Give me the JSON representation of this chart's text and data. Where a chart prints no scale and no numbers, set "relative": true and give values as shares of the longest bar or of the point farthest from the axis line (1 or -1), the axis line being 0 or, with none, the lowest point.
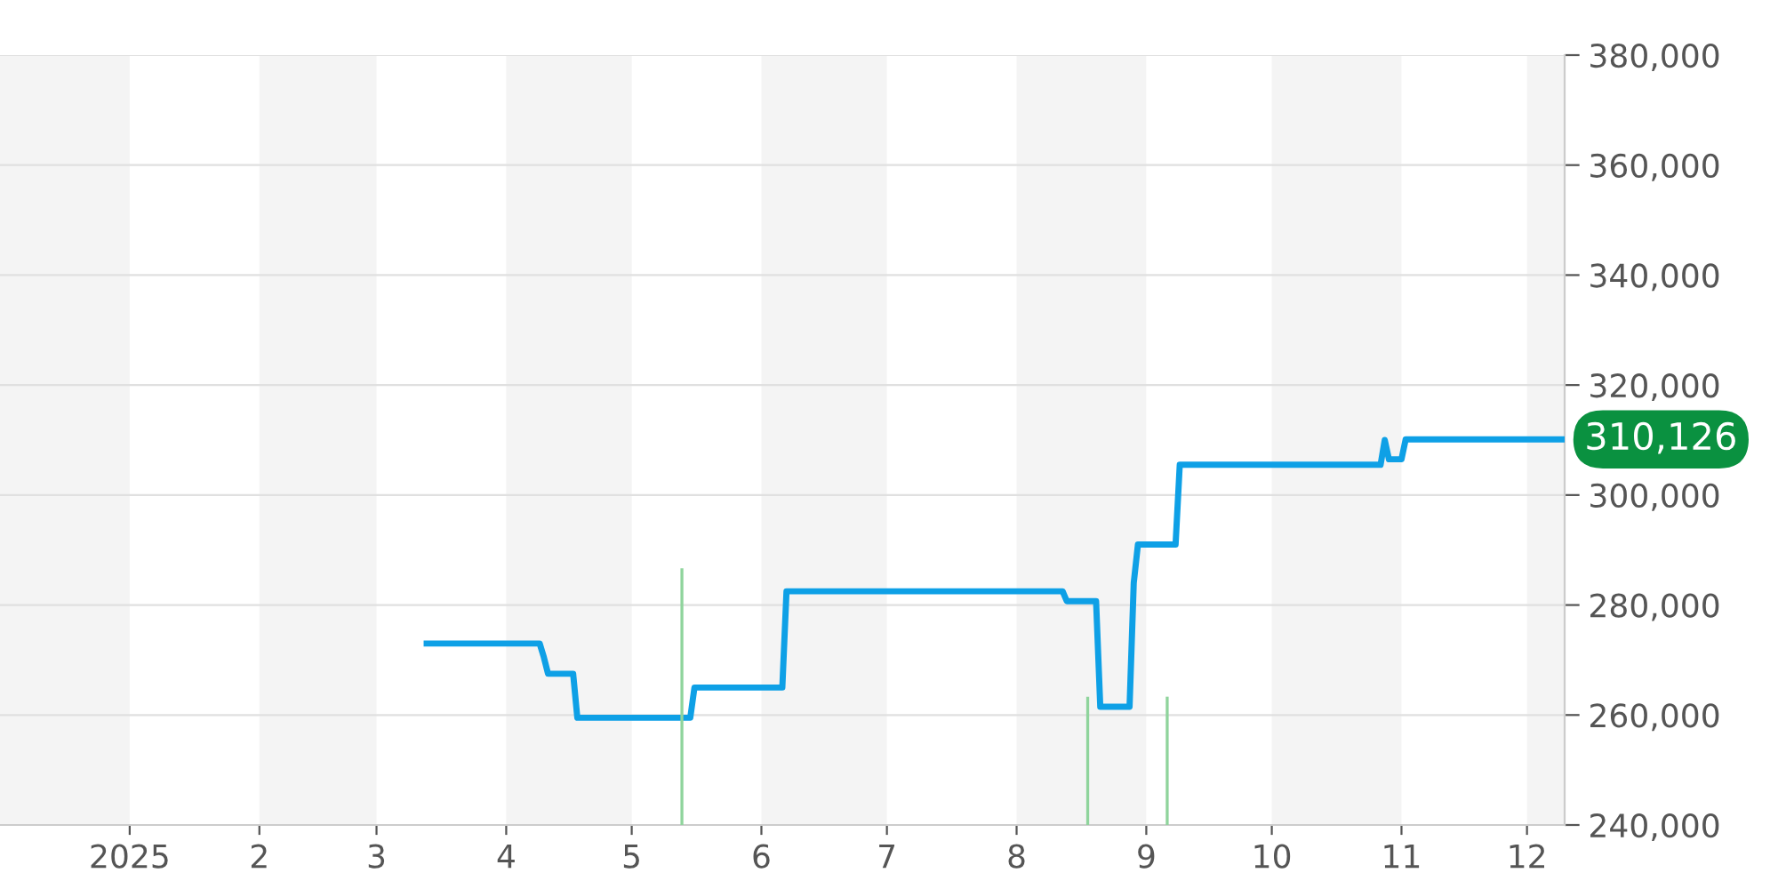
{
  "chart_data": [
    {
      "type": "line",
      "color": "#0ea0e6",
      "grid": "y",
      "legend": false,
      "x": [
        "2025-03-13",
        "2025-04-09",
        "2025-04-10",
        "2025-04-11",
        "2025-04-17",
        "2025-04-18",
        "2025-05-15",
        "2025-05-16",
        "2025-06-06",
        "2025-06-07",
        "2025-08-12",
        "2025-08-13",
        "2025-08-20",
        "2025-08-21",
        "2025-08-28",
        "2025-08-29",
        "2025-08-30",
        "2025-09-08",
        "2025-09-09",
        "2025-10-27",
        "2025-10-28",
        "2025-10-29",
        "2025-11-01",
        "2025-11-02",
        "2025-12-10"
      ],
      "values": [
        273000,
        273000,
        270500,
        267500,
        267500,
        259500,
        259500,
        265000,
        265000,
        282500,
        282500,
        280700,
        280700,
        261500,
        261500,
        284000,
        291000,
        291000,
        305500,
        305500,
        310000,
        306500,
        306500,
        310126,
        310126
      ],
      "xlim": [
        "2024-12-01",
        "2025-12-10"
      ],
      "xticks": [
        {
          "value": "2025-01-01",
          "label": "2025"
        },
        {
          "value": "2025-02-01",
          "label": "2"
        },
        {
          "value": "2025-03-01",
          "label": "3"
        },
        {
          "value": "2025-04-01",
          "label": "4"
        },
        {
          "value": "2025-05-01",
          "label": "5"
        },
        {
          "value": "2025-06-01",
          "label": "6"
        },
        {
          "value": "2025-07-01",
          "label": "7"
        },
        {
          "value": "2025-08-01",
          "label": "8"
        },
        {
          "value": "2025-09-01",
          "label": "9"
        },
        {
          "value": "2025-10-01",
          "label": "10"
        },
        {
          "value": "2025-11-01",
          "label": "11"
        },
        {
          "value": "2025-12-01",
          "label": "12"
        }
      ],
      "ylim": [
        240000,
        380000
      ],
      "yticks": [
        {
          "value": 240000,
          "label": "240,000"
        },
        {
          "value": 260000,
          "label": "260,000"
        },
        {
          "value": 280000,
          "label": "280,000"
        },
        {
          "value": 300000,
          "label": "300,000"
        },
        {
          "value": 320000,
          "label": "320,000"
        },
        {
          "value": 340000,
          "label": "340,000"
        },
        {
          "value": 360000,
          "label": "360,000"
        },
        {
          "value": 380000,
          "label": "380,000"
        }
      ],
      "bands": [
        {
          "axis": "x",
          "from": "2024-12-01",
          "to": "2025-01-01",
          "color": "#f4f4f4"
        },
        {
          "axis": "x",
          "from": "2025-02-01",
          "to": "2025-03-01",
          "color": "#f4f4f4"
        },
        {
          "axis": "x",
          "from": "2025-04-01",
          "to": "2025-05-01",
          "color": "#f4f4f4"
        },
        {
          "axis": "x",
          "from": "2025-06-01",
          "to": "2025-07-01",
          "color": "#f4f4f4"
        },
        {
          "axis": "x",
          "from": "2025-08-01",
          "to": "2025-09-01",
          "color": "#f4f4f4"
        },
        {
          "axis": "x",
          "from": "2025-10-01",
          "to": "2025-11-01",
          "color": "#f4f4f4"
        },
        {
          "axis": "x",
          "from": "2025-12-01",
          "to": "2025-12-10",
          "color": "#f4f4f4"
        }
      ],
      "annotations": [
        {
          "text": "310,126",
          "x": "2025-12-10",
          "y": 310126
        }
      ]
    },
    {
      "type": "bar",
      "relative": true,
      "color": "#8fd49c",
      "x": [
        "2025-05-13",
        "2025-08-18",
        "2025-09-06"
      ],
      "values": [
        1,
        0.5,
        0.5
      ],
      "xlim": [
        "2024-12-01",
        "2025-12-10"
      ]
    }
  ]
}
